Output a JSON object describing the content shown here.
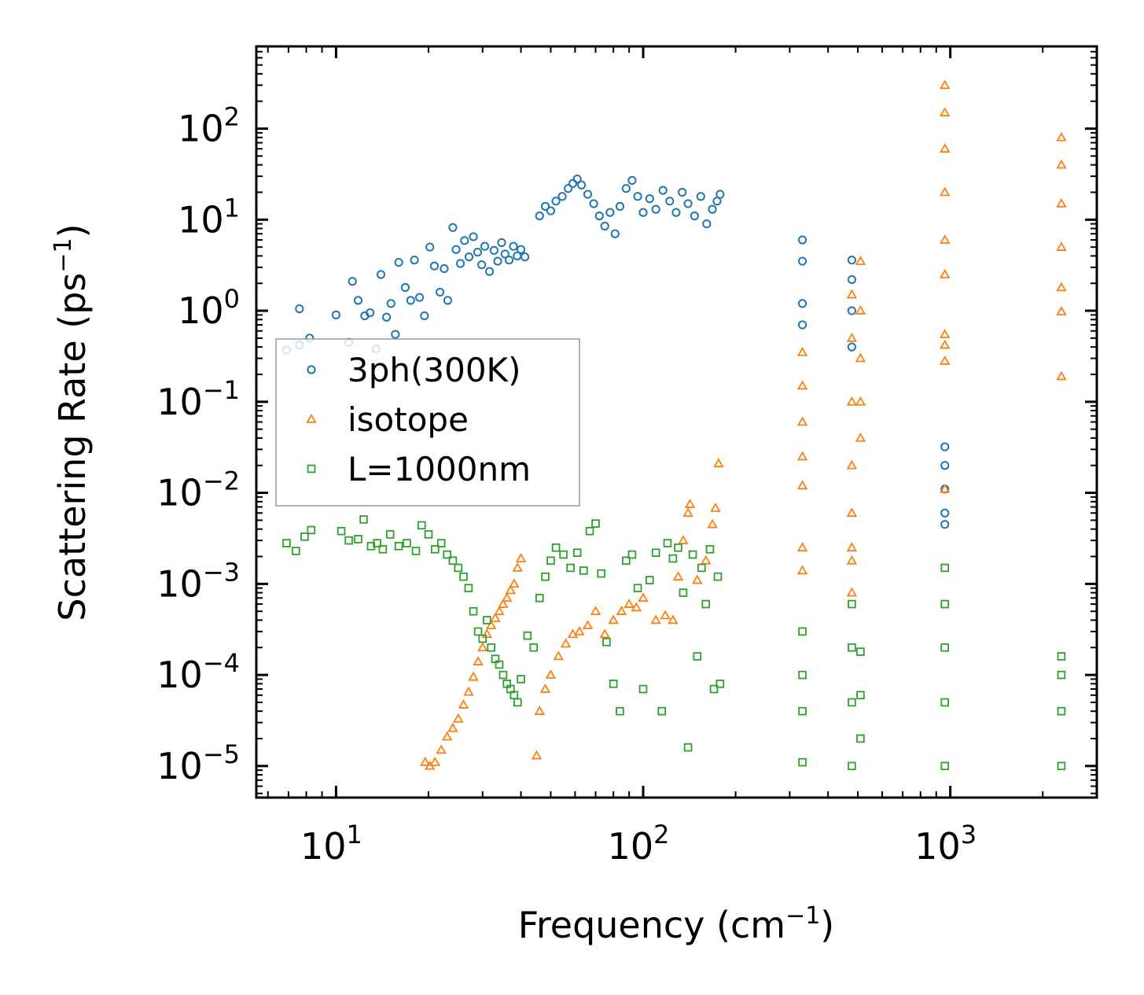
{
  "chart_data": {
    "type": "scatter",
    "title": "",
    "xlabel": "Frequency (cm⁻¹)",
    "ylabel": "Scattering Rate (ps⁻¹)",
    "xlabel_parts": {
      "main": "Frequency (cm",
      "sup": "−1",
      "close": ")"
    },
    "ylabel_parts": {
      "main": "Scattering Rate (ps",
      "sup": "−1",
      "close": ")"
    },
    "xscale": "log",
    "yscale": "log",
    "xlim": [
      5.5,
      3000
    ],
    "ylim": [
      4.5e-06,
      800
    ],
    "grid": false,
    "legend_position": "center-left",
    "x_ticks": [
      {
        "value": 10,
        "base": "10",
        "exp": "1"
      },
      {
        "value": 100,
        "base": "10",
        "exp": "2"
      },
      {
        "value": 1000,
        "base": "10",
        "exp": "3"
      }
    ],
    "y_ticks": [
      {
        "value": 1e-05,
        "base": "10",
        "exp": "−5"
      },
      {
        "value": 0.0001,
        "base": "10",
        "exp": "−4"
      },
      {
        "value": 0.001,
        "base": "10",
        "exp": "−3"
      },
      {
        "value": 0.01,
        "base": "10",
        "exp": "−2"
      },
      {
        "value": 0.1,
        "base": "10",
        "exp": "−1"
      },
      {
        "value": 1,
        "base": "10",
        "exp": "0"
      },
      {
        "value": 10,
        "base": "10",
        "exp": "1"
      },
      {
        "value": 100,
        "base": "10",
        "exp": "2"
      }
    ],
    "series": [
      {
        "name": "3ph(300K)",
        "color": "#1f77b4",
        "marker": "circle",
        "points": [
          [
            6.9,
            0.37
          ],
          [
            7.6,
            1.05
          ],
          [
            7.6,
            0.42
          ],
          [
            8.2,
            0.5
          ],
          [
            10.0,
            0.9
          ],
          [
            11.0,
            0.45
          ],
          [
            11.3,
            2.1
          ],
          [
            11.8,
            1.3
          ],
          [
            12.4,
            0.88
          ],
          [
            12.9,
            0.95
          ],
          [
            13.5,
            0.38
          ],
          [
            14.0,
            2.5
          ],
          [
            14.6,
            0.85
          ],
          [
            15.1,
            1.2
          ],
          [
            15.6,
            0.55
          ],
          [
            16.0,
            3.4
          ],
          [
            16.8,
            1.8
          ],
          [
            17.5,
            1.3
          ],
          [
            18.0,
            3.6
          ],
          [
            18.7,
            1.4
          ],
          [
            19.4,
            0.88
          ],
          [
            20.2,
            5.0
          ],
          [
            20.9,
            3.1
          ],
          [
            21.8,
            1.6
          ],
          [
            22.5,
            2.9
          ],
          [
            23.1,
            1.3
          ],
          [
            24.0,
            8.2
          ],
          [
            24.6,
            4.7
          ],
          [
            25.4,
            3.3
          ],
          [
            26.2,
            5.9
          ],
          [
            27.1,
            3.9
          ],
          [
            28.0,
            6.5
          ],
          [
            28.9,
            4.4
          ],
          [
            29.8,
            3.2
          ],
          [
            30.5,
            5.1
          ],
          [
            31.6,
            2.7
          ],
          [
            32.7,
            4.6
          ],
          [
            33.6,
            3.5
          ],
          [
            34.6,
            5.6
          ],
          [
            35.5,
            4.2
          ],
          [
            36.6,
            3.6
          ],
          [
            37.8,
            5.1
          ],
          [
            38.9,
            4.0
          ],
          [
            40.0,
            4.7
          ],
          [
            41.2,
            3.9
          ],
          [
            46.0,
            11.0
          ],
          [
            48.0,
            14.0
          ],
          [
            50.0,
            12.5
          ],
          [
            52.0,
            16.0
          ],
          [
            54.5,
            18.0
          ],
          [
            57.0,
            22.0
          ],
          [
            59.0,
            25.0
          ],
          [
            61.0,
            28.0
          ],
          [
            63.0,
            24.0
          ],
          [
            66.0,
            19.0
          ],
          [
            69.0,
            15.0
          ],
          [
            72.0,
            11.0
          ],
          [
            75.0,
            8.5
          ],
          [
            78.0,
            12.0
          ],
          [
            81.0,
            7.0
          ],
          [
            84.0,
            14.0
          ],
          [
            88.0,
            22.0
          ],
          [
            92.0,
            27.0
          ],
          [
            96.0,
            18.0
          ],
          [
            100.0,
            12.0
          ],
          [
            105.0,
            17.0
          ],
          [
            110.0,
            13.0
          ],
          [
            116.0,
            21.0
          ],
          [
            122.0,
            16.0
          ],
          [
            128.0,
            12.0
          ],
          [
            134.0,
            20.0
          ],
          [
            140.0,
            15.0
          ],
          [
            147.0,
            11.0
          ],
          [
            154.0,
            18.0
          ],
          [
            161.0,
            9.0
          ],
          [
            168.0,
            13.0
          ],
          [
            174.0,
            16.0
          ],
          [
            178.0,
            19.0
          ],
          [
            330.0,
            6.0
          ],
          [
            330.0,
            3.5
          ],
          [
            330.0,
            1.2
          ],
          [
            330.0,
            0.7
          ],
          [
            478.0,
            3.6
          ],
          [
            478.0,
            2.2
          ],
          [
            478.0,
            1.0
          ],
          [
            478.0,
            0.4
          ],
          [
            960.0,
            0.032
          ],
          [
            960.0,
            0.02
          ],
          [
            960.0,
            0.011
          ],
          [
            960.0,
            0.006
          ],
          [
            960.0,
            0.0045
          ]
        ]
      },
      {
        "name": "isotope",
        "color": "#ff7f0e",
        "marker": "triangle",
        "points": [
          [
            19.5,
            1.1e-05
          ],
          [
            20.2,
            1e-05
          ],
          [
            21.0,
            1.1e-05
          ],
          [
            22.0,
            1.5e-05
          ],
          [
            23.0,
            2.1e-05
          ],
          [
            24.0,
            2.6e-05
          ],
          [
            25.0,
            3.3e-05
          ],
          [
            26.0,
            4.7e-05
          ],
          [
            27.0,
            6.5e-05
          ],
          [
            28.0,
            9.5e-05
          ],
          [
            29.0,
            0.00014
          ],
          [
            30.0,
            0.0002
          ],
          [
            31.0,
            0.00028
          ],
          [
            32.0,
            0.00035
          ],
          [
            33.0,
            0.00042
          ],
          [
            34.0,
            0.0005
          ],
          [
            35.0,
            0.0006
          ],
          [
            36.0,
            0.0007
          ],
          [
            37.0,
            0.00085
          ],
          [
            38.0,
            0.001
          ],
          [
            39.0,
            0.0015
          ],
          [
            40.0,
            0.0019
          ],
          [
            45.0,
            1.3e-05
          ],
          [
            46.0,
            4e-05
          ],
          [
            48.0,
            7e-05
          ],
          [
            50.0,
            0.0001
          ],
          [
            53.0,
            0.00016
          ],
          [
            56.0,
            0.00022
          ],
          [
            59.0,
            0.00028
          ],
          [
            62.0,
            0.0003
          ],
          [
            66.0,
            0.00035
          ],
          [
            70.0,
            0.0005
          ],
          [
            75.0,
            0.00028
          ],
          [
            80.0,
            0.0004
          ],
          [
            85.0,
            0.0005
          ],
          [
            90.0,
            0.0006
          ],
          [
            95.0,
            0.00055
          ],
          [
            100.0,
            0.0007
          ],
          [
            110.0,
            0.0004
          ],
          [
            118.0,
            0.00045
          ],
          [
            125.0,
            0.0004
          ],
          [
            130.0,
            0.0012
          ],
          [
            135.0,
            0.003
          ],
          [
            140.0,
            0.006
          ],
          [
            142.0,
            0.0075
          ],
          [
            150.0,
            0.0011
          ],
          [
            160.0,
            0.0018
          ],
          [
            168.0,
            0.0045
          ],
          [
            172.0,
            0.0068
          ],
          [
            176.0,
            0.021
          ],
          [
            330.0,
            0.35
          ],
          [
            330.0,
            0.15
          ],
          [
            330.0,
            0.06
          ],
          [
            330.0,
            0.025
          ],
          [
            330.0,
            0.012
          ],
          [
            330.0,
            0.0025
          ],
          [
            330.0,
            0.0014
          ],
          [
            478.0,
            1.5
          ],
          [
            478.0,
            0.5
          ],
          [
            478.0,
            0.1
          ],
          [
            478.0,
            0.02
          ],
          [
            478.0,
            0.006
          ],
          [
            478.0,
            0.0025
          ],
          [
            478.0,
            0.0018
          ],
          [
            478.0,
            0.0008
          ],
          [
            510.0,
            3.5
          ],
          [
            510.0,
            1.0
          ],
          [
            510.0,
            0.3
          ],
          [
            510.0,
            0.1
          ],
          [
            510.0,
            0.04
          ],
          [
            960.0,
            300.0
          ],
          [
            960.0,
            150.0
          ],
          [
            960.0,
            60.0
          ],
          [
            960.0,
            20.0
          ],
          [
            960.0,
            6.0
          ],
          [
            960.0,
            2.5
          ],
          [
            960.0,
            0.55
          ],
          [
            960.0,
            0.42
          ],
          [
            960.0,
            0.28
          ],
          [
            960.0,
            0.011
          ],
          [
            2300.0,
            80.0
          ],
          [
            2300.0,
            40.0
          ],
          [
            2300.0,
            15.0
          ],
          [
            2300.0,
            5.0
          ],
          [
            2300.0,
            1.8
          ],
          [
            2300.0,
            0.98
          ],
          [
            2300.0,
            0.19
          ]
        ]
      },
      {
        "name": "L=1000nm",
        "color": "#2ca02c",
        "marker": "square",
        "points": [
          [
            6.9,
            0.0028
          ],
          [
            7.4,
            0.0023
          ],
          [
            7.9,
            0.0033
          ],
          [
            8.3,
            0.0039
          ],
          [
            10.4,
            0.0038
          ],
          [
            11.0,
            0.003
          ],
          [
            11.8,
            0.0031
          ],
          [
            12.3,
            0.0051
          ],
          [
            13.0,
            0.0026
          ],
          [
            13.6,
            0.0028
          ],
          [
            14.2,
            0.0024
          ],
          [
            15.0,
            0.0035
          ],
          [
            16.0,
            0.0026
          ],
          [
            17.0,
            0.0028
          ],
          [
            18.2,
            0.0023
          ],
          [
            19.0,
            0.0044
          ],
          [
            20.0,
            0.0035
          ],
          [
            21.0,
            0.0024
          ],
          [
            22.0,
            0.0028
          ],
          [
            23.0,
            0.0021
          ],
          [
            24.0,
            0.0018
          ],
          [
            25.0,
            0.0015
          ],
          [
            26.0,
            0.0012
          ],
          [
            27.0,
            0.0009
          ],
          [
            28.0,
            0.0005
          ],
          [
            29.0,
            0.0003
          ],
          [
            30.0,
            0.00025
          ],
          [
            31.0,
            0.0004
          ],
          [
            32.0,
            0.0002
          ],
          [
            33.0,
            0.00015
          ],
          [
            34.0,
            0.00013
          ],
          [
            35.0,
            0.0001
          ],
          [
            36.0,
            8e-05
          ],
          [
            37.0,
            7e-05
          ],
          [
            38.0,
            6e-05
          ],
          [
            39.0,
            5e-05
          ],
          [
            40.0,
            9e-05
          ],
          [
            42.0,
            0.00027
          ],
          [
            44.0,
            0.0002
          ],
          [
            46.0,
            0.0007
          ],
          [
            48.0,
            0.0012
          ],
          [
            50.0,
            0.0018
          ],
          [
            52.0,
            0.0025
          ],
          [
            55.0,
            0.0021
          ],
          [
            58.0,
            0.0015
          ],
          [
            61.0,
            0.0022
          ],
          [
            64.0,
            0.0014
          ],
          [
            67.0,
            0.0038
          ],
          [
            70.0,
            0.0046
          ],
          [
            73.0,
            0.0013
          ],
          [
            76.0,
            0.00023
          ],
          [
            80.0,
            8e-05
          ],
          [
            84.0,
            4e-05
          ],
          [
            88.0,
            0.0018
          ],
          [
            92.0,
            0.0021
          ],
          [
            96.0,
            0.0009
          ],
          [
            100.0,
            7e-05
          ],
          [
            105.0,
            0.0011
          ],
          [
            110.0,
            0.0022
          ],
          [
            115.0,
            4e-05
          ],
          [
            120.0,
            0.0028
          ],
          [
            125.0,
            0.0019
          ],
          [
            130.0,
            0.0025
          ],
          [
            135.0,
            0.0008
          ],
          [
            140.0,
            1.6e-05
          ],
          [
            145.0,
            0.0021
          ],
          [
            150.0,
            0.00016
          ],
          [
            155.0,
            0.0015
          ],
          [
            160.0,
            0.0006
          ],
          [
            165.0,
            0.0024
          ],
          [
            170.0,
            7e-05
          ],
          [
            175.0,
            0.0012
          ],
          [
            178.0,
            8e-05
          ],
          [
            330.0,
            0.0003
          ],
          [
            330.0,
            0.0001
          ],
          [
            330.0,
            4e-05
          ],
          [
            330.0,
            1.1e-05
          ],
          [
            478.0,
            0.0006
          ],
          [
            478.0,
            0.0002
          ],
          [
            478.0,
            5e-05
          ],
          [
            478.0,
            1e-05
          ],
          [
            510.0,
            0.00018
          ],
          [
            510.0,
            6e-05
          ],
          [
            510.0,
            2e-05
          ],
          [
            960.0,
            0.0015
          ],
          [
            960.0,
            0.0006
          ],
          [
            960.0,
            0.0002
          ],
          [
            960.0,
            5e-05
          ],
          [
            960.0,
            1e-05
          ],
          [
            2300.0,
            0.00016
          ],
          [
            2300.0,
            0.0001
          ],
          [
            2300.0,
            4e-05
          ],
          [
            2300.0,
            1e-05
          ]
        ]
      }
    ]
  }
}
